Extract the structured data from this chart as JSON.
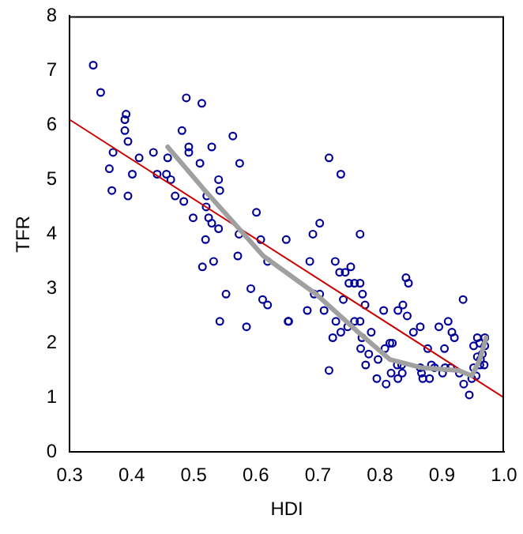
{
  "chart_data": {
    "type": "scatter",
    "xlabel": "HDI",
    "ylabel": "TFR",
    "xlim": [
      0.3,
      1.0
    ],
    "ylim": [
      0,
      8
    ],
    "xticks": [
      0.3,
      0.4,
      0.5,
      0.6,
      0.7,
      0.8,
      0.9,
      {
        "value": 1,
        "label": "1.0"
      }
    ],
    "yticks": [
      0,
      1,
      2,
      3,
      4,
      5,
      6,
      7,
      8
    ],
    "grid": false,
    "legend": false,
    "marker": "circle",
    "series": [
      {
        "color": "#000099",
        "x": [
          0.338,
          0.35,
          0.391,
          0.389,
          0.389,
          0.394,
          0.37,
          0.364,
          0.368,
          0.394,
          0.401,
          0.412,
          0.435,
          0.441,
          0.456,
          0.463,
          0.458,
          0.47,
          0.484,
          0.481,
          0.488,
          0.513,
          0.492,
          0.492,
          0.529,
          0.51,
          0.54,
          0.542,
          0.521,
          0.499,
          0.524,
          0.529,
          0.54,
          0.52,
          0.563,
          0.574,
          0.601,
          0.573,
          0.608,
          0.649,
          0.519,
          0.718,
          0.737,
          0.703,
          0.692,
          0.768,
          0.571,
          0.532,
          0.514,
          0.619,
          0.552,
          0.592,
          0.611,
          0.619,
          0.542,
          0.585,
          0.653,
          0.687,
          0.728,
          0.753,
          0.735,
          0.744,
          0.75,
          0.759,
          0.768,
          0.772,
          0.741,
          0.776,
          0.842,
          0.846,
          0.934,
          0.694,
          0.703,
          0.683,
          0.71,
          0.652,
          0.729,
          0.748,
          0.759,
          0.768,
          0.724,
          0.737,
          0.771,
          0.786,
          0.806,
          0.829,
          0.837,
          0.844,
          0.865,
          0.854,
          0.895,
          0.91,
          0.916,
          0.92,
          0.877,
          0.904,
          0.769,
          0.782,
          0.797,
          0.808,
          0.816,
          0.82,
          0.777,
          0.718,
          0.828,
          0.835,
          0.795,
          0.81,
          0.818,
          0.829,
          0.836,
          0.865,
          0.869,
          0.88,
          0.883,
          0.901,
          0.905,
          0.914,
          0.928,
          0.935,
          0.944,
          0.948,
          0.955,
          0.961,
          0.957,
          0.965,
          0.969,
          0.961,
          0.969,
          0.957,
          0.951,
          0.962,
          0.968,
          0.951,
          0.867,
          0.888
        ],
        "values": [
          7.1,
          6.6,
          6.2,
          6.1,
          5.9,
          5.7,
          5.5,
          5.2,
          4.8,
          4.7,
          5.1,
          5.4,
          5.5,
          5.1,
          5.1,
          5.0,
          5.4,
          4.7,
          4.6,
          5.9,
          6.5,
          6.4,
          5.6,
          5.5,
          5.6,
          5.3,
          5.0,
          4.8,
          4.7,
          4.3,
          4.3,
          4.2,
          4.1,
          4.5,
          5.8,
          5.3,
          4.4,
          4.0,
          3.9,
          3.9,
          3.9,
          5.4,
          5.1,
          4.2,
          4.0,
          4.0,
          3.6,
          3.5,
          3.4,
          3.5,
          2.9,
          3.0,
          2.8,
          2.7,
          2.4,
          2.3,
          2.4,
          3.5,
          3.5,
          3.4,
          3.3,
          3.3,
          3.1,
          3.1,
          3.1,
          2.9,
          2.8,
          2.7,
          3.2,
          3.1,
          2.8,
          2.9,
          2.9,
          2.6,
          2.6,
          2.4,
          2.4,
          2.3,
          2.4,
          2.4,
          2.1,
          2.2,
          2.1,
          2.2,
          2.6,
          2.6,
          2.7,
          2.5,
          2.3,
          2.2,
          2.3,
          2.4,
          2.2,
          2.1,
          1.9,
          1.9,
          1.9,
          1.8,
          1.7,
          1.9,
          2.0,
          2.0,
          1.6,
          1.5,
          1.6,
          1.6,
          1.35,
          1.25,
          1.45,
          1.35,
          1.45,
          1.55,
          1.35,
          1.35,
          1.6,
          1.45,
          1.55,
          1.55,
          1.45,
          1.25,
          1.05,
          1.35,
          1.4,
          1.6,
          1.75,
          1.8,
          1.95,
          2.0,
          2.1,
          2.1,
          1.95,
          1.7,
          1.6,
          1.55,
          1.45,
          1.55
        ]
      },
      {
        "type": "line",
        "color": "#cc0000",
        "marker": "none",
        "x": [
          0.3,
          1.0
        ],
        "values": [
          6.1,
          1.0
        ]
      },
      {
        "type": "line",
        "color": "#a0a0a0",
        "marker": "none",
        "x": [
          0.458,
          0.518,
          0.573,
          0.612,
          0.697,
          0.765,
          0.816,
          0.867,
          0.927,
          0.948,
          0.961,
          0.971
        ],
        "values": [
          5.6,
          4.8,
          4.1,
          3.6,
          2.9,
          2.2,
          1.7,
          1.55,
          1.5,
          1.4,
          1.7,
          2.1
        ]
      }
    ]
  }
}
